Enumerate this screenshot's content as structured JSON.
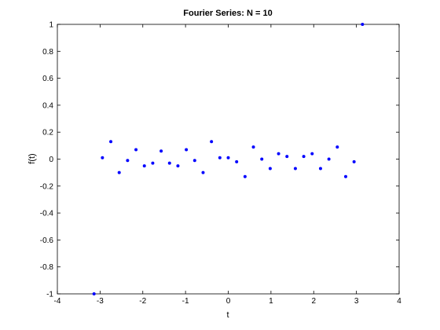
{
  "chart_data": {
    "type": "scatter",
    "title": "Fourier Series: N = 10",
    "xlabel": "t",
    "ylabel": "f(t)",
    "xlim": [
      -4,
      4
    ],
    "ylim": [
      -1,
      1
    ],
    "xticks": [
      -4,
      -3,
      -2,
      -1,
      0,
      1,
      2,
      3,
      4
    ],
    "xtick_labels": [
      "-4",
      "-3",
      "-2",
      "-1",
      "0",
      "1",
      "2",
      "3",
      "4"
    ],
    "yticks": [
      -1,
      -0.8,
      -0.6,
      -0.4,
      -0.2,
      0,
      0.2,
      0.4,
      0.6,
      0.8,
      1
    ],
    "ytick_labels": [
      "-1",
      "-0.8",
      "-0.6",
      "-0.4",
      "-0.2",
      "0",
      "0.2",
      "0.4",
      "0.6",
      "0.8",
      "1"
    ],
    "grid": false,
    "marker_color": "#0000ff",
    "series": [
      {
        "x": [
          -3.1416,
          -2.9452,
          -2.7489,
          -2.5525,
          -2.3562,
          -2.1598,
          -1.9635,
          -1.7671,
          -1.5708,
          -1.3744,
          -1.1781,
          -0.9817,
          -0.7854,
          -0.589,
          -0.3927,
          -0.1963,
          0.0,
          0.1963,
          0.3927,
          0.589,
          0.7854,
          0.9817,
          1.1781,
          1.3744,
          1.5708,
          1.7671,
          1.9635,
          2.1598,
          2.3562,
          2.5525,
          2.7489,
          2.9452,
          3.1416
        ],
        "y": [
          -1.0,
          0.01,
          0.13,
          -0.1,
          -0.01,
          0.07,
          -0.05,
          -0.03,
          0.06,
          -0.03,
          -0.05,
          0.07,
          -0.01,
          -0.1,
          0.13,
          0.01,
          0.01,
          -0.02,
          -0.13,
          0.09,
          0.0,
          -0.07,
          0.04,
          0.02,
          -0.07,
          0.02,
          0.04,
          -0.07,
          0.0,
          0.09,
          -0.13,
          -0.02,
          1.0
        ]
      }
    ]
  }
}
